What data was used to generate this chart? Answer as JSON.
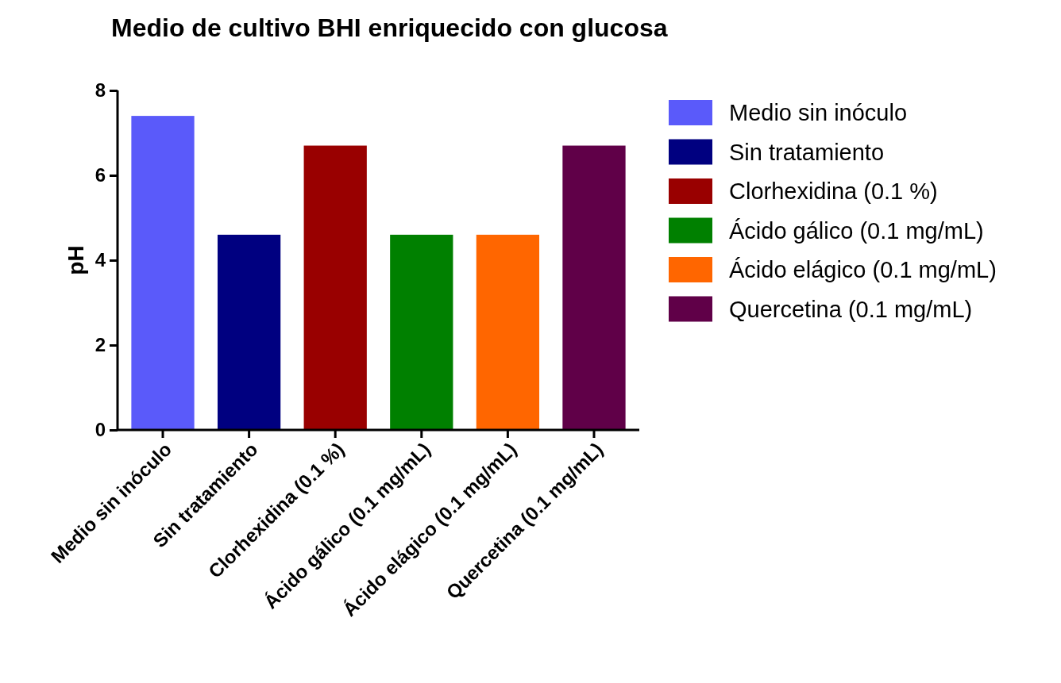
{
  "chart_data": {
    "type": "bar",
    "title": "Medio de cultivo BHI  enriquecido con glucosa",
    "ylabel": "pH",
    "categories": [
      "Medio sin inóculo",
      "Sin tratamiento",
      "Clorhexidina (0.1 %)",
      "Ácido gálico (0.1 mg/mL)",
      "Ácido elágico (0.1 mg/mL)",
      "Quercetina (0.1 mg/mL)"
    ],
    "series": [
      {
        "name": "Medio sin inóculo",
        "color": "#5a5afa",
        "values": [
          7.4,
          null,
          null,
          null,
          null,
          null
        ]
      },
      {
        "name": "Sin tratamiento",
        "color": "#000080",
        "values": [
          null,
          4.6,
          null,
          null,
          null,
          null
        ]
      },
      {
        "name": "Clorhexidina (0.1 %)",
        "color": "#990000",
        "values": [
          null,
          null,
          6.7,
          null,
          null,
          null
        ]
      },
      {
        "name": "Ácido gálico (0.1 mg/mL)",
        "color": "#008000",
        "values": [
          null,
          null,
          null,
          4.6,
          null,
          null
        ]
      },
      {
        "name": "Ácido elágico (0.1 mg/mL)",
        "color": "#ff6600",
        "values": [
          null,
          null,
          null,
          null,
          4.6,
          null
        ]
      },
      {
        "name": "Quercetina (0.1 mg/mL)",
        "color": "#600048",
        "values": [
          null,
          null,
          null,
          null,
          null,
          6.7
        ]
      }
    ],
    "ylim": [
      0,
      8
    ],
    "yticks": [
      0,
      2,
      4,
      6,
      8
    ],
    "legend": "right"
  }
}
